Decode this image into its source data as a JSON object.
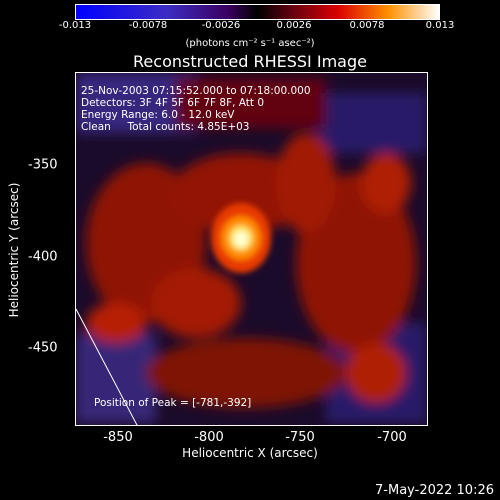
{
  "colorbar": {
    "ticks": [
      "-0.013",
      "-0.0078",
      "-0.0026",
      "0.0026",
      "0.0078",
      "0.013"
    ],
    "unit": "(photons cm⁻² s⁻¹ asec⁻²)"
  },
  "title": "Reconstructed RHESSI Image",
  "info": {
    "time": "25-Nov-2003 07:15:52.000 to 07:18:00.000",
    "detectors": "Detectors: 3F 4F 5F 6F 7F 8F, Att 0",
    "energy": "Energy Range: 6.0 - 12.0 keV",
    "clean": "Clean     Total counts: 4.85E+03"
  },
  "peak_label": "Position of Peak = [-781,-392]",
  "xaxis": {
    "label": "Heliocentric X (arcsec)",
    "ticks": [
      "-850",
      "-800",
      "-750",
      "-700"
    ]
  },
  "yaxis": {
    "label": "Heliocentric Y (arcsec)",
    "ticks": [
      "-350",
      "-400",
      "-450"
    ]
  },
  "timestamp": "7-May-2022 10:26",
  "colors": {
    "background": "#000000",
    "peak": "#ffffd0",
    "emission": "#c81e00"
  }
}
